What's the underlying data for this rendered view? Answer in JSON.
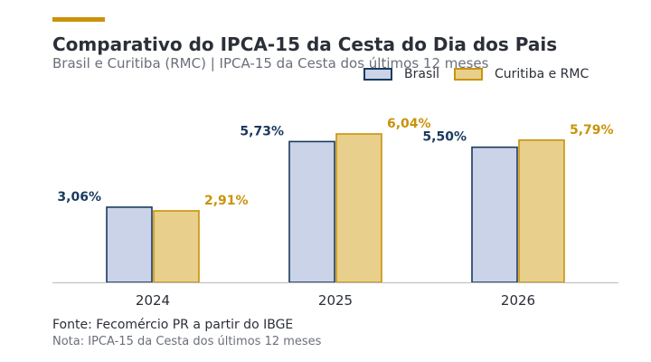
{
  "header": {
    "title": "Comparativo do IPCA-15 da Cesta do Dia dos Pais",
    "subtitle": "Brasil e Curitiba (RMC) | IPCA-15 da Cesta dos últimos 12 meses"
  },
  "footer": {
    "source": "Fonte: Fecomércio PR a partir do IBGE",
    "note": "Nota: IPCA-15 da Cesta dos últimos 12 meses"
  },
  "colors": {
    "accent": "#C9930A",
    "brasil_fill": "#CAD3E8",
    "brasil_stroke": "#1A3A5F",
    "curitiba_fill": "#E9CF8C",
    "curitiba_stroke": "#C9930A",
    "axis": "#BBBBBB"
  },
  "chart_data": {
    "type": "bar",
    "title": "Comparativo do IPCA-15 da Cesta do Dia dos Pais",
    "subtitle": "Brasil e Curitiba (RMC) | IPCA-15 da Cesta dos últimos 12 meses",
    "categories": [
      "2024",
      "2025",
      "2026"
    ],
    "series": [
      {
        "name": "Brasil",
        "values": [
          3.06,
          5.73,
          5.5
        ],
        "labels": [
          "3,06%",
          "5,73%",
          "5,50%"
        ]
      },
      {
        "name": "Curitiba e RMC",
        "values": [
          2.91,
          6.04,
          5.79
        ],
        "labels": [
          "2,91%",
          "6,04%",
          "5,79%"
        ]
      }
    ],
    "xlabel": "",
    "ylabel": "",
    "ylim": [
      0,
      6.04
    ],
    "grid": false,
    "legend": "top-right"
  }
}
